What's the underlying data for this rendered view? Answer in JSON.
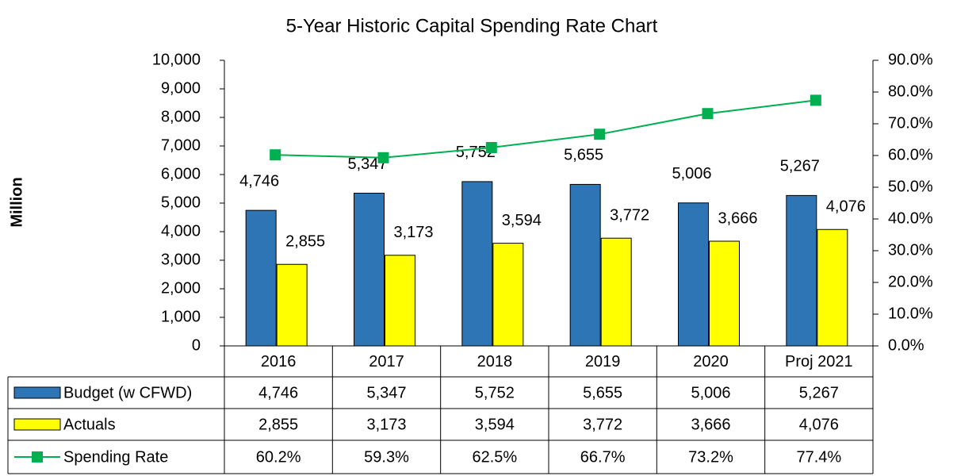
{
  "chart_data": {
    "type": "bar",
    "title": "5-Year Historic Capital Spending Rate Chart",
    "y_label": "Million",
    "categories": [
      "2016",
      "2017",
      "2018",
      "2019",
      "2020",
      "Proj 2021"
    ],
    "series": [
      {
        "name": "Budget (w CFWD)",
        "type": "bar",
        "color": "#2e75b6",
        "values": [
          4746,
          5347,
          5752,
          5655,
          5006,
          5267
        ],
        "value_labels": [
          "4,746",
          "5,347",
          "5,752",
          "5,655",
          "5,006",
          "5,267"
        ]
      },
      {
        "name": "Actuals",
        "type": "bar",
        "color": "#ffff00",
        "values": [
          2855,
          3173,
          3594,
          3772,
          3666,
          4076
        ],
        "value_labels": [
          "2,855",
          "3,173",
          "3,594",
          "3,772",
          "3,666",
          "4,076"
        ]
      },
      {
        "name": "Spending Rate",
        "type": "line",
        "axis": "y2",
        "color": "#00b050",
        "values": [
          60.2,
          59.3,
          62.5,
          66.7,
          73.2,
          77.4
        ],
        "value_labels": [
          "60.2%",
          "59.3%",
          "62.5%",
          "66.7%",
          "73.2%",
          "77.4%"
        ]
      }
    ],
    "ylim": [
      0,
      10000
    ],
    "yticks": [
      0,
      {
        "value": 1000,
        "label": "1,000"
      },
      {
        "value": 2000,
        "label": "2,000"
      },
      {
        "value": 3000,
        "label": "3,000"
      },
      {
        "value": 4000,
        "label": "4,000"
      },
      {
        "value": 5000,
        "label": "5,000"
      },
      {
        "value": 6000,
        "label": "6,000"
      },
      {
        "value": 7000,
        "label": "7,000"
      },
      {
        "value": 8000,
        "label": "8,000"
      },
      {
        "value": 9000,
        "label": "9,000"
      },
      {
        "value": 10000,
        "label": "10,000"
      }
    ],
    "y2lim": [
      0,
      90
    ],
    "y2ticks": [
      {
        "value": 0,
        "label": "0.0%"
      },
      {
        "value": 10,
        "label": "10.0%"
      },
      {
        "value": 20,
        "label": "20.0%"
      },
      {
        "value": 30,
        "label": "30.0%"
      },
      {
        "value": 40,
        "label": "40.0%"
      },
      {
        "value": 50,
        "label": "50.0%"
      },
      {
        "value": 60,
        "label": "60.0%"
      },
      {
        "value": 70,
        "label": "70.0%"
      },
      {
        "value": 80,
        "label": "80.0%"
      },
      {
        "value": 90,
        "label": "90.0%"
      }
    ],
    "grid": false,
    "data_table": true
  }
}
